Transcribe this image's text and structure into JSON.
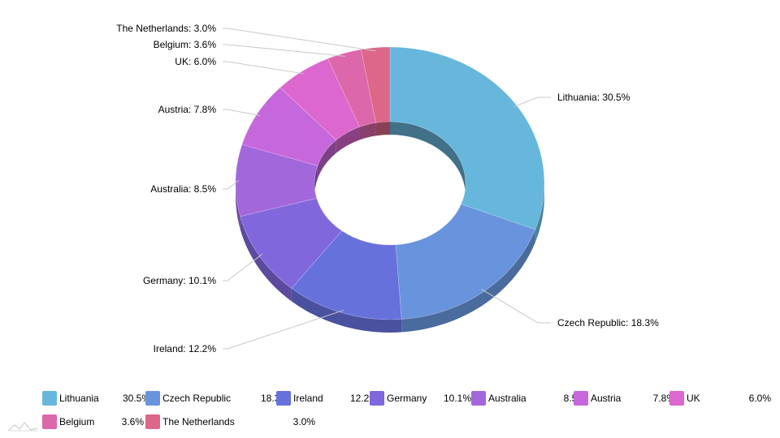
{
  "chart_data": {
    "type": "pie",
    "variant": "3d-donut",
    "legend_position": "bottom",
    "slices": [
      {
        "name": "Lithuania",
        "value": 30.5,
        "label": "Lithuania: 30.5%",
        "legend_value": "30.5%",
        "color": "#67b7dc"
      },
      {
        "name": "Czech Republic",
        "value": 18.3,
        "label": "Czech Republic: 18.3%",
        "legend_value": "18.3%",
        "color": "#6794dc"
      },
      {
        "name": "Ireland",
        "value": 12.2,
        "label": "Ireland: 12.2%",
        "legend_value": "12.2%",
        "color": "#6771dc"
      },
      {
        "name": "Germany",
        "value": 10.1,
        "label": "Germany: 10.1%",
        "legend_value": "10.1%",
        "color": "#8067dc"
      },
      {
        "name": "Australia",
        "value": 8.5,
        "label": "Australia: 8.5%",
        "legend_value": "8.5%",
        "color": "#a367dc"
      },
      {
        "name": "Austria",
        "value": 7.8,
        "label": "Austria: 7.8%",
        "legend_value": "7.8%",
        "color": "#c767dc"
      },
      {
        "name": "UK",
        "value": 6.0,
        "label": "UK: 6.0%",
        "legend_value": "6.0%",
        "color": "#dc67ce"
      },
      {
        "name": "Belgium",
        "value": 3.6,
        "label": "Belgium: 3.6%",
        "legend_value": "3.6%",
        "color": "#dc67ab"
      },
      {
        "name": "The Netherlands",
        "value": 3.0,
        "label": "The Netherlands: 3.0%",
        "legend_value": "3.0%",
        "color": "#dc6788"
      }
    ]
  }
}
